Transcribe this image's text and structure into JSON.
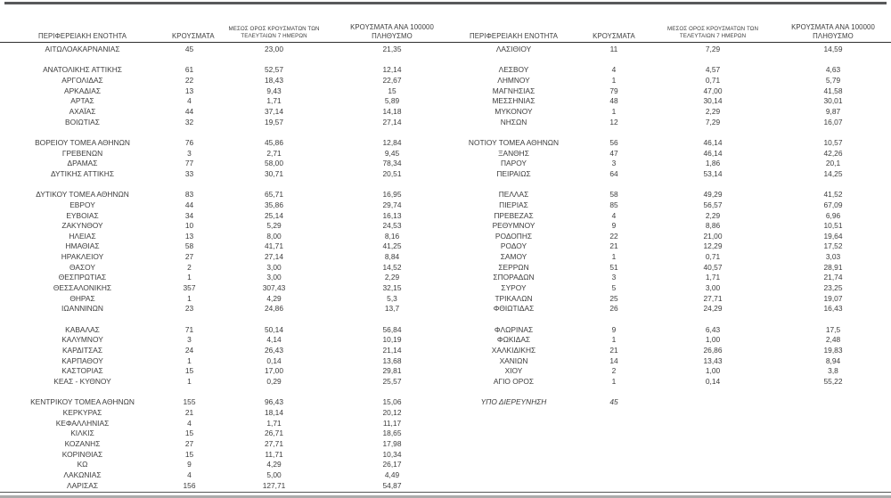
{
  "page": {
    "background": "#ffffff",
    "text_color": "#3d3d3d",
    "top_rule_color": "#58595b",
    "header_border_color": "#2f2f2f",
    "bottom_rule_dark_color": "#565656",
    "bottom_rule_light_color": "#ababab"
  },
  "table": {
    "headers": [
      "ΠΕΡΙΦΕΡΕΙΑΚΗ ΕΝΟΤΗΤΑ",
      "ΚΡΟΥΣΜΑΤΑ",
      "ΜΕΣΟΣ ΟΡΟΣ ΚΡΟΥΣΜΑΤΩΝ ΤΩΝ ΤΕΛΕΥΤΑΙΩΝ 7 ΗΜΕΡΩΝ",
      "ΚΡΟΥΣΜΑΤΑ ΑΝΑ 100000 ΠΛΗΘΥΣΜΟ"
    ],
    "italic_row_label": "ΥΠΟ ΔΙΕΡΕΥΝΗΣΗ",
    "left_lines": [
      [
        "ΑΙΤΩΛΟΑΚΑΡΝΑΝΙΑΣ",
        "45",
        "23,00",
        "21,35"
      ],
      null,
      [
        "ΑΝΑΤΟΛΙΚΗΣ ΑΤΤΙΚΗΣ",
        "61",
        "52,57",
        "12,14"
      ],
      [
        "ΑΡΓΟΛΙΔΑΣ",
        "22",
        "18,43",
        "22,67"
      ],
      [
        "ΑΡΚΑΔΙΑΣ",
        "13",
        "9,43",
        "15"
      ],
      [
        "ΑΡΤΑΣ",
        "4",
        "1,71",
        "5,89"
      ],
      [
        "ΑΧΑΪΑΣ",
        "44",
        "37,14",
        "14,18"
      ],
      [
        "ΒΟΙΩΤΙΑΣ",
        "32",
        "19,57",
        "27,14"
      ],
      null,
      [
        "ΒΟΡΕΙΟΥ ΤΟΜΕΑ ΑΘΗΝΩΝ",
        "76",
        "45,86",
        "12,84"
      ],
      [
        "ΓΡΕΒΕΝΩΝ",
        "3",
        "2,71",
        "9,45"
      ],
      [
        "ΔΡΑΜΑΣ",
        "77",
        "58,00",
        "78,34"
      ],
      [
        "ΔΥΤΙΚΗΣ ΑΤΤΙΚΗΣ",
        "33",
        "30,71",
        "20,51"
      ],
      null,
      [
        "ΔΥΤΙΚΟΥ ΤΟΜΕΑ ΑΘΗΝΩΝ",
        "83",
        "65,71",
        "16,95"
      ],
      [
        "ΕΒΡΟΥ",
        "44",
        "35,86",
        "29,74"
      ],
      [
        "ΕΥΒΟΙΑΣ",
        "34",
        "25,14",
        "16,13"
      ],
      [
        "ΖΑΚΥΝΘΟΥ",
        "10",
        "5,29",
        "24,53"
      ],
      [
        "ΗΛΕΙΑΣ",
        "13",
        "8,00",
        "8,16"
      ],
      [
        "ΗΜΑΘΙΑΣ",
        "58",
        "41,71",
        "41,25"
      ],
      [
        "ΗΡΑΚΛΕΙΟΥ",
        "27",
        "27,14",
        "8,84"
      ],
      [
        "ΘΑΣΟΥ",
        "2",
        "3,00",
        "14,52"
      ],
      [
        "ΘΕΣΠΡΩΤΙΑΣ",
        "1",
        "3,00",
        "2,29"
      ],
      [
        "ΘΕΣΣΑΛΟΝΙΚΗΣ",
        "357",
        "307,43",
        "32,15"
      ],
      [
        "ΘΗΡΑΣ",
        "1",
        "4,29",
        "5,3"
      ],
      [
        "ΙΩΑΝΝΙΝΩΝ",
        "23",
        "24,86",
        "13,7"
      ],
      null,
      [
        "ΚΑΒΑΛΑΣ",
        "71",
        "50,14",
        "56,84"
      ],
      [
        "ΚΑΛΥΜΝΟΥ",
        "3",
        "4,14",
        "10,19"
      ],
      [
        "ΚΑΡΔΙΤΣΑΣ",
        "24",
        "26,43",
        "21,14"
      ],
      [
        "ΚΑΡΠΑΘΟΥ",
        "1",
        "0,14",
        "13,68"
      ],
      [
        "ΚΑΣΤΟΡΙΑΣ",
        "15",
        "17,00",
        "29,81"
      ],
      [
        "ΚΕΑΣ - ΚΥΘΝΟΥ",
        "1",
        "0,29",
        "25,57"
      ],
      null,
      [
        "ΚΕΝΤΡΙΚΟΥ ΤΟΜΕΑ ΑΘΗΝΩΝ",
        "155",
        "96,43",
        "15,06"
      ],
      [
        "ΚΕΡΚΥΡΑΣ",
        "21",
        "18,14",
        "20,12"
      ],
      [
        "ΚΕΦΑΛΛΗΝΙΑΣ",
        "4",
        "1,71",
        "11,17"
      ],
      [
        "ΚΙΛΚΙΣ",
        "15",
        "26,71",
        "18,65"
      ],
      [
        "ΚΟΖΑΝΗΣ",
        "27",
        "27,71",
        "17,98"
      ],
      [
        "ΚΟΡΙΝΘΙΑΣ",
        "15",
        "11,71",
        "10,34"
      ],
      [
        "ΚΩ",
        "9",
        "4,29",
        "26,17"
      ],
      [
        "ΛΑΚΩΝΙΑΣ",
        "4",
        "5,00",
        "4,49"
      ],
      [
        "ΛΑΡΙΣΑΣ",
        "156",
        "127,71",
        "54,87"
      ]
    ],
    "right_lines": [
      [
        "ΛΑΣΙΘΙΟΥ",
        "11",
        "7,29",
        "14,59"
      ],
      null,
      [
        "ΛΕΣΒΟΥ",
        "4",
        "4,57",
        "4,63"
      ],
      [
        "ΛΗΜΝΟΥ",
        "1",
        "0,71",
        "5,79"
      ],
      [
        "ΜΑΓΝΗΣΙΑΣ",
        "79",
        "47,00",
        "41,58"
      ],
      [
        "ΜΕΣΣΗΝΙΑΣ",
        "48",
        "30,14",
        "30,01"
      ],
      [
        "ΜΥΚΟΝΟΥ",
        "1",
        "2,29",
        "9,87"
      ],
      [
        "ΝΗΣΩΝ",
        "12",
        "7,29",
        "16,07"
      ],
      null,
      [
        "ΝΟΤΙΟΥ ΤΟΜΕΑ ΑΘΗΝΩΝ",
        "56",
        "46,14",
        "10,57"
      ],
      [
        "ΞΑΝΘΗΣ",
        "47",
        "46,14",
        "42,26"
      ],
      [
        "ΠΑΡΟΥ",
        "3",
        "1,86",
        "20,1"
      ],
      [
        "ΠΕΙΡΑΙΩΣ",
        "64",
        "53,14",
        "14,25"
      ],
      null,
      [
        "ΠΕΛΛΑΣ",
        "58",
        "49,29",
        "41,52"
      ],
      [
        "ΠΙΕΡΙΑΣ",
        "85",
        "56,57",
        "67,09"
      ],
      [
        "ΠΡΕΒΕΖΑΣ",
        "4",
        "2,29",
        "6,96"
      ],
      [
        "ΡΕΘΥΜΝΟΥ",
        "9",
        "8,86",
        "10,51"
      ],
      [
        "ΡΟΔΟΠΗΣ",
        "22",
        "21,00",
        "19,64"
      ],
      [
        "ΡΟΔΟΥ",
        "21",
        "12,29",
        "17,52"
      ],
      [
        "ΣΑΜΟΥ",
        "1",
        "0,71",
        "3,03"
      ],
      [
        "ΣΕΡΡΩΝ",
        "51",
        "40,57",
        "28,91"
      ],
      [
        "ΣΠΟΡΑΔΩΝ",
        "3",
        "1,71",
        "21,74"
      ],
      [
        "ΣΥΡΟΥ",
        "5",
        "3,00",
        "23,25"
      ],
      [
        "ΤΡΙΚΑΛΩΝ",
        "25",
        "27,71",
        "19,07"
      ],
      [
        "ΦΘΙΩΤΙΔΑΣ",
        "26",
        "24,29",
        "16,43"
      ],
      null,
      [
        "ΦΛΩΡΙΝΑΣ",
        "9",
        "6,43",
        "17,5"
      ],
      [
        "ΦΩΚΙΔΑΣ",
        "1",
        "1,00",
        "2,48"
      ],
      [
        "ΧΑΛΚΙΔΙΚΗΣ",
        "21",
        "26,86",
        "19,83"
      ],
      [
        "ΧΑΝΙΩΝ",
        "14",
        "13,43",
        "8,94"
      ],
      [
        "ΧΙΟΥ",
        "2",
        "1,00",
        "3,8"
      ],
      [
        "ΑΓΙΟ ΟΡΟΣ",
        "1",
        "0,14",
        "55,22"
      ],
      null,
      [
        "ΥΠΟ ΔΙΕΡΕΥΝΗΣΗ",
        "45",
        "",
        ""
      ]
    ]
  }
}
